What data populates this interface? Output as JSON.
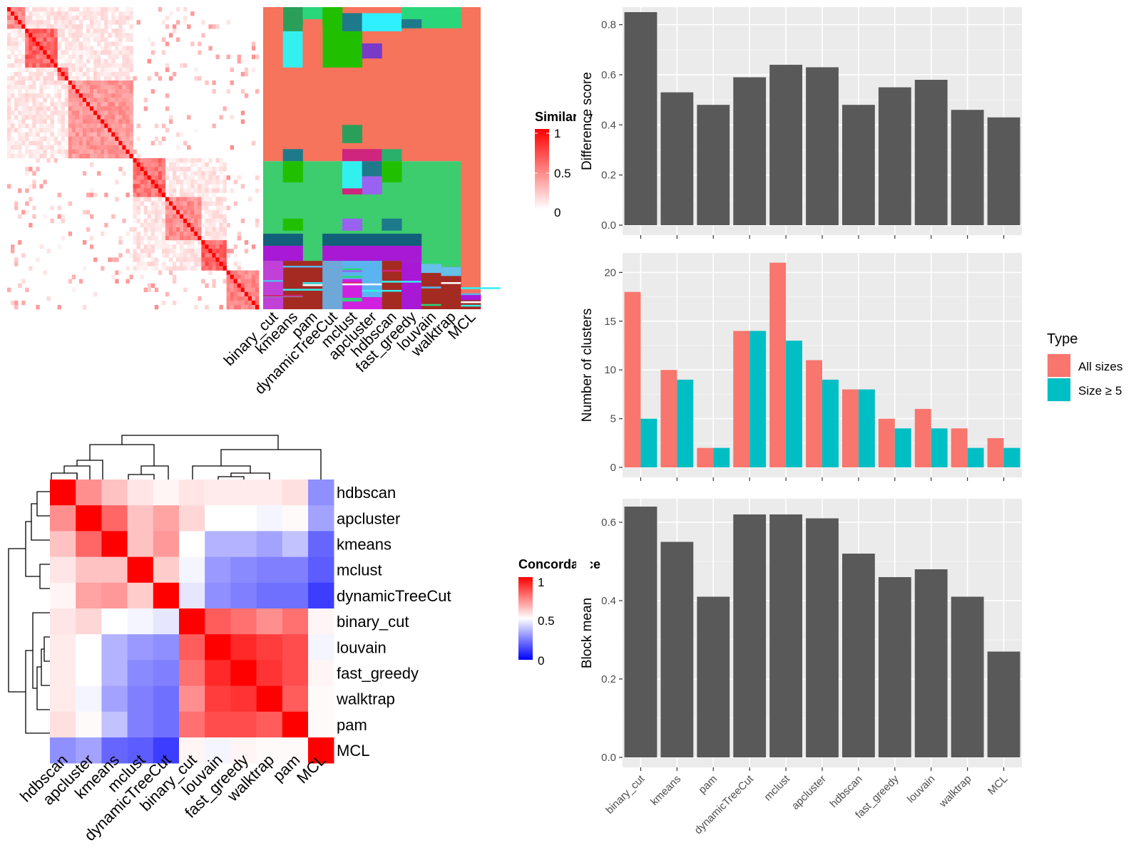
{
  "methods_order_heatmap": [
    "binary_cut",
    "kmeans",
    "pam",
    "dynamicTreeCut",
    "mclust",
    "apcluster",
    "hdbscan",
    "fast_greedy",
    "louvain",
    "walktrap",
    "MCL"
  ],
  "similarity_legend": {
    "title": "Similarity",
    "ticks": [
      "1",
      "0.5",
      "0"
    ]
  },
  "concordance": {
    "legend_title": "Concordance",
    "legend_ticks": [
      "1",
      "0.5",
      "0"
    ],
    "order": [
      "hdbscan",
      "apcluster",
      "kmeans",
      "mclust",
      "dynamicTreeCut",
      "binary_cut",
      "louvain",
      "fast_greedy",
      "walktrap",
      "pam",
      "MCL"
    ],
    "matrix": [
      [
        1.0,
        0.72,
        0.62,
        0.55,
        0.52,
        0.55,
        0.54,
        0.54,
        0.54,
        0.56,
        0.28
      ],
      [
        0.72,
        1.0,
        0.8,
        0.62,
        0.68,
        0.58,
        0.5,
        0.5,
        0.48,
        0.51,
        0.32
      ],
      [
        0.62,
        0.8,
        1.0,
        0.62,
        0.7,
        0.5,
        0.35,
        0.35,
        0.32,
        0.38,
        0.2
      ],
      [
        0.55,
        0.62,
        0.62,
        1.0,
        0.6,
        0.48,
        0.3,
        0.27,
        0.25,
        0.25,
        0.18
      ],
      [
        0.52,
        0.68,
        0.7,
        0.6,
        1.0,
        0.45,
        0.28,
        0.25,
        0.22,
        0.22,
        0.12
      ],
      [
        0.55,
        0.58,
        0.5,
        0.48,
        0.45,
        1.0,
        0.82,
        0.78,
        0.72,
        0.78,
        0.52
      ],
      [
        0.54,
        0.5,
        0.35,
        0.3,
        0.28,
        0.82,
        1.0,
        0.92,
        0.88,
        0.85,
        0.48
      ],
      [
        0.54,
        0.5,
        0.35,
        0.27,
        0.25,
        0.78,
        0.92,
        1.0,
        0.9,
        0.85,
        0.52
      ],
      [
        0.54,
        0.48,
        0.32,
        0.25,
        0.22,
        0.72,
        0.88,
        0.9,
        1.0,
        0.82,
        0.51
      ],
      [
        0.56,
        0.51,
        0.38,
        0.25,
        0.22,
        0.78,
        0.85,
        0.85,
        0.82,
        1.0,
        0.51
      ],
      [
        0.28,
        0.32,
        0.2,
        0.18,
        0.12,
        0.52,
        0.48,
        0.52,
        0.51,
        0.51,
        1.0
      ]
    ]
  },
  "chart_data": [
    {
      "type": "bar",
      "categories": [
        "binary_cut",
        "kmeans",
        "pam",
        "dynamicTreeCut",
        "mclust",
        "apcluster",
        "hdbscan",
        "fast_greedy",
        "louvain",
        "walktrap",
        "MCL"
      ],
      "values": [
        0.85,
        0.53,
        0.48,
        0.59,
        0.64,
        0.63,
        0.48,
        0.55,
        0.58,
        0.46,
        0.43
      ],
      "ylabel": "Difference score",
      "ylim": [
        0,
        0.87
      ],
      "yticks": [
        "0.0",
        "0.2",
        "0.4",
        "0.6",
        "0.8"
      ],
      "grid": true
    },
    {
      "type": "bar",
      "categories": [
        "binary_cut",
        "kmeans",
        "pam",
        "dynamicTreeCut",
        "mclust",
        "apcluster",
        "hdbscan",
        "fast_greedy",
        "louvain",
        "walktrap",
        "MCL"
      ],
      "series": [
        {
          "name": "All sizes",
          "color": "#F8766D",
          "values": [
            18,
            10,
            2,
            14,
            21,
            11,
            8,
            5,
            6,
            4,
            3
          ]
        },
        {
          "name": "Size ≥ 5",
          "color": "#00BFC4",
          "values": [
            5,
            9,
            2,
            14,
            13,
            9,
            8,
            4,
            4,
            2,
            2
          ]
        }
      ],
      "ylabel": "Number of clusters",
      "ylim": [
        0,
        22
      ],
      "yticks": [
        "0",
        "5",
        "10",
        "15",
        "20"
      ],
      "legend": {
        "title": "Type",
        "placement": "right"
      },
      "grid": true
    },
    {
      "type": "bar",
      "categories": [
        "binary_cut",
        "kmeans",
        "pam",
        "dynamicTreeCut",
        "mclust",
        "apcluster",
        "hdbscan",
        "fast_greedy",
        "louvain",
        "walktrap",
        "MCL"
      ],
      "values": [
        0.64,
        0.55,
        0.41,
        0.62,
        0.62,
        0.61,
        0.52,
        0.46,
        0.48,
        0.41,
        0.27
      ],
      "ylabel": "Block mean",
      "ylim": [
        0,
        0.66
      ],
      "yticks": [
        "0.0",
        "0.2",
        "0.4",
        "0.6"
      ],
      "grid": true
    }
  ]
}
